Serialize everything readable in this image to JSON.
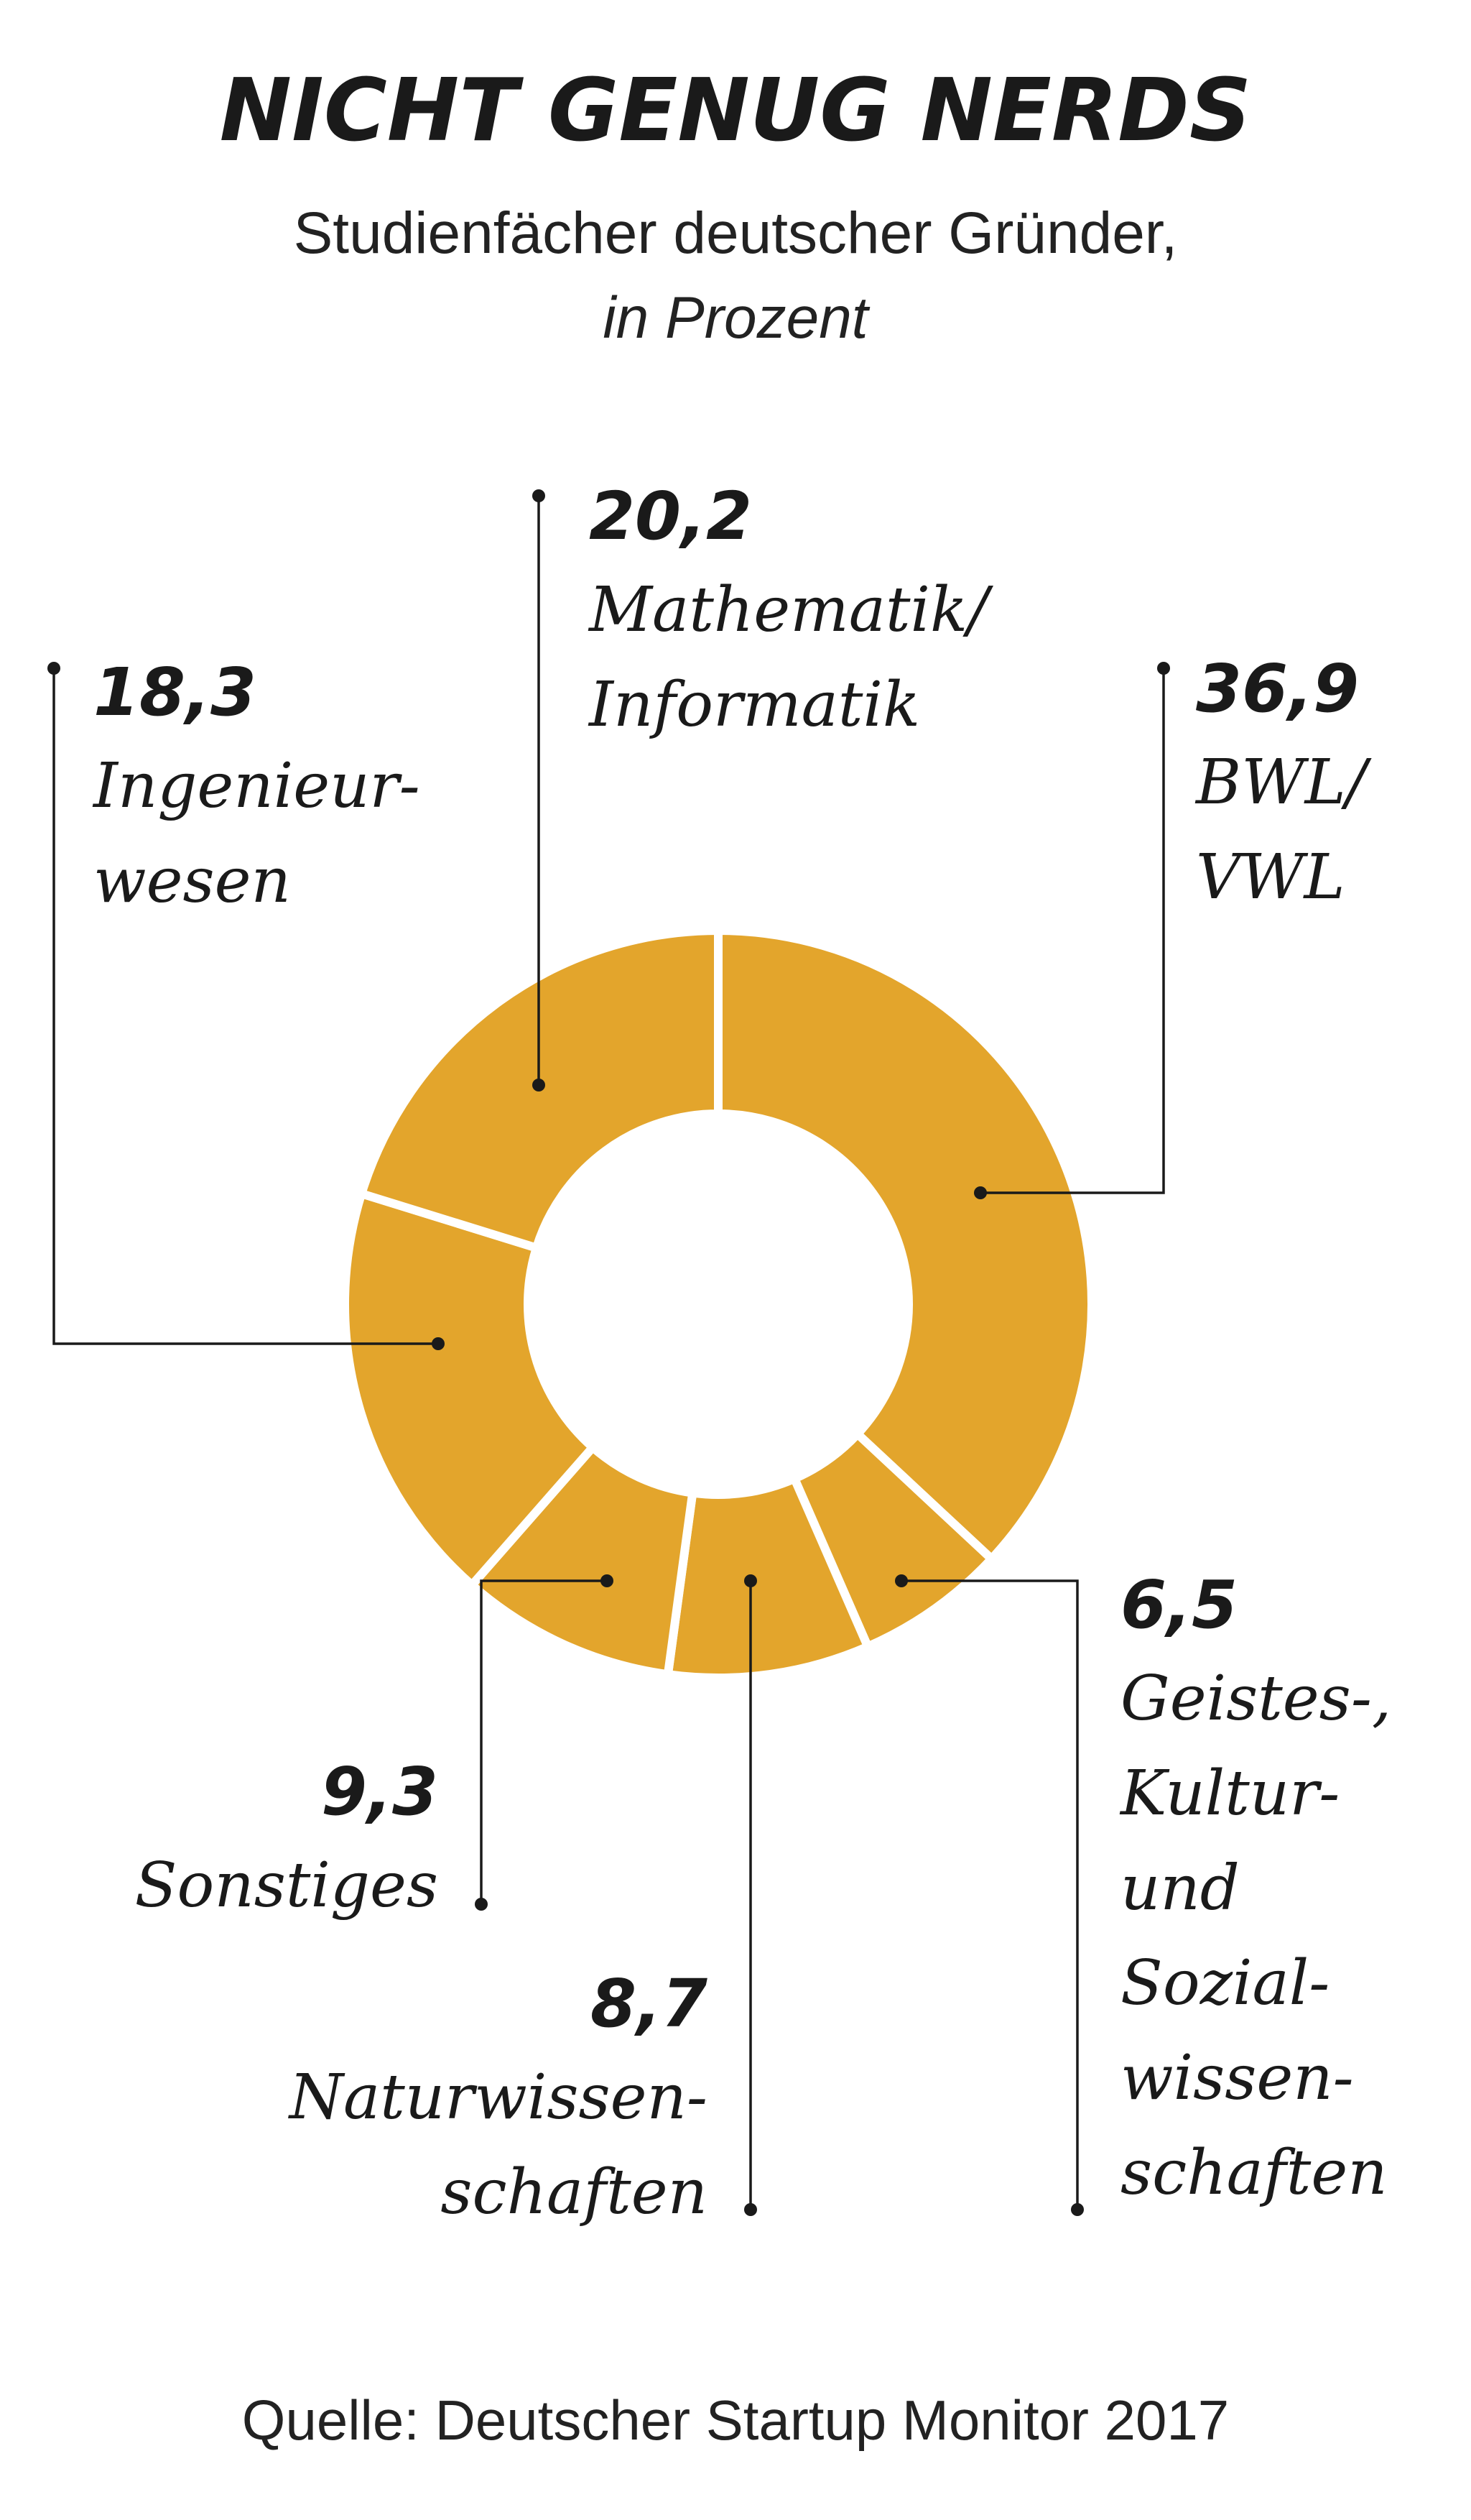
{
  "title": "NICHT GENUG NERDS",
  "subtitle_line1": "Studienfächer deutscher Gründer,",
  "subtitle_line2": "in Prozent",
  "source": "Quelle: Deutscher Startup Monitor 2017",
  "colors": {
    "slice": "#E3A52C",
    "separator": "#ffffff",
    "text": "#1a1a1a"
  },
  "chart_data": {
    "type": "pie",
    "variant": "donut",
    "unit": "Prozent",
    "slices": [
      {
        "label_lines": [
          "BWL/",
          "VWL"
        ],
        "value": 36.9,
        "value_text": "36,9"
      },
      {
        "label_lines": [
          "Geistes-,",
          "Kultur-",
          "und",
          "Sozial-",
          "wissen-",
          "schaften"
        ],
        "value": 6.5,
        "value_text": "6,5"
      },
      {
        "label_lines": [
          "Naturwissen-",
          "schaften"
        ],
        "value": 8.7,
        "value_text": "8,7"
      },
      {
        "label_lines": [
          "Sonstiges"
        ],
        "value": 9.3,
        "value_text": "9,3"
      },
      {
        "label_lines": [
          "Ingenieur-",
          "wesen"
        ],
        "value": 18.3,
        "value_text": "18,3"
      },
      {
        "label_lines": [
          "Mathematik/",
          "Informatik"
        ],
        "value": 20.2,
        "value_text": "20,2"
      }
    ]
  }
}
